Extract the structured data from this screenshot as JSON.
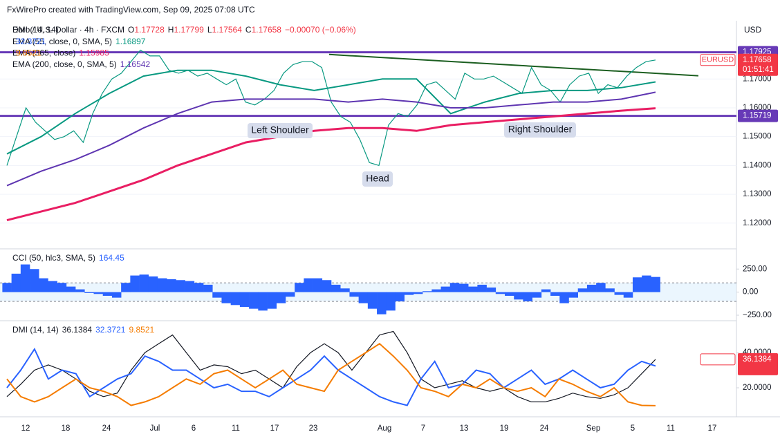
{
  "header": {
    "attribution": "FxWirePro created with TradingView.com, Sep 09, 2025 07:08 UTC"
  },
  "chart_data": [
    {
      "type": "line",
      "title": "Euro / U.S. Dollar · 4h · FXCM",
      "ohlc": [
        "O",
        "1.17728",
        "H",
        "1.17799",
        "L",
        "1.17564",
        "C",
        "1.17658",
        "−0.00070 (−0.06%)"
      ],
      "currency": "USD",
      "ylim": [
        1.1118,
        1.1902
      ],
      "yticks": [
        {
          "value": 1.17,
          "label": "1.17000"
        },
        {
          "value": 1.16,
          "label": "1.16000"
        },
        {
          "value": 1.15,
          "label": "1.15000"
        },
        {
          "value": 1.14,
          "label": "1.14000"
        },
        {
          "value": 1.13,
          "label": "1.13000"
        },
        {
          "value": 1.12,
          "label": "1.12000"
        }
      ],
      "grid": true,
      "levels": [
        {
          "value": 1.17925,
          "label": "1.17925"
        },
        {
          "value": 1.15719,
          "label": "1.15719"
        }
      ],
      "level_color": "#673ab7",
      "trendline": [
        1.1785,
        1.1711
      ],
      "annotations": [
        "Left Shoulder",
        "Head",
        "Right Shoulder"
      ],
      "countdown": "01:51:41",
      "series": [
        {
          "name": "EURUSD",
          "color": "#089981",
          "value_label": "1.17658",
          "values": [
            1.14,
            1.15,
            1.16,
            1.155,
            1.152,
            1.149,
            1.15,
            1.152,
            1.148,
            1.158,
            1.165,
            1.17,
            1.172,
            1.176,
            1.18,
            1.178,
            1.178,
            1.173,
            1.172,
            1.173,
            1.171,
            1.172,
            1.17,
            1.168,
            1.17,
            1.162,
            1.161,
            1.163,
            1.166,
            1.172,
            1.175,
            1.176,
            1.176,
            1.174,
            1.162,
            1.157,
            1.155,
            1.149,
            1.141,
            1.14,
            1.154,
            1.158,
            1.157,
            1.161,
            1.168,
            1.169,
            1.166,
            1.163,
            1.172,
            1.17,
            1.17,
            1.171,
            1.169,
            1.167,
            1.165,
            1.174,
            1.168,
            1.166,
            1.162,
            1.168,
            1.171,
            1.172,
            1.165,
            1.168,
            1.167,
            1.171,
            1.174,
            1.176,
            1.17658
          ]
        },
        {
          "name": "EMA (55, close, 0, SMA, 5)",
          "color": "#089981",
          "value_label": "1.16897",
          "values": [
            1.144,
            1.15,
            1.158,
            1.165,
            1.171,
            1.173,
            1.173,
            1.171,
            1.168,
            1.166,
            1.168,
            1.17,
            1.17,
            1.158,
            1.162,
            1.165,
            1.166,
            1.166,
            1.167,
            1.16897
          ]
        },
        {
          "name": "EMA (365, close)",
          "color": "#e91e63",
          "value_label": "1.15985",
          "values": [
            1.121,
            1.124,
            1.127,
            1.131,
            1.135,
            1.14,
            1.144,
            1.148,
            1.15,
            1.152,
            1.153,
            1.153,
            1.152,
            1.154,
            1.155,
            1.156,
            1.157,
            1.158,
            1.159,
            1.15985
          ]
        },
        {
          "name": "EMA (200, close, 0, SMA, 5)",
          "color": "#5e35b1",
          "value_label": "1.16542",
          "values": [
            1.133,
            1.138,
            1.142,
            1.147,
            1.153,
            1.158,
            1.162,
            1.163,
            1.163,
            1.163,
            1.162,
            1.163,
            1.162,
            1.16,
            1.16,
            1.161,
            1.162,
            1.162,
            1.163,
            1.16542
          ]
        }
      ]
    },
    {
      "type": "bar",
      "title": "CCI (50, hlc3, SMA, 5)",
      "value_label": "164.45",
      "color": "#2962ff",
      "ylim": [
        -295,
        454
      ],
      "yticks": [
        {
          "value": 250,
          "label": "250.00"
        },
        {
          "value": 0,
          "label": "0.00"
        },
        {
          "value": -250,
          "label": "−250.00"
        }
      ],
      "bands": [
        100,
        -100
      ],
      "values": [
        100,
        200,
        300,
        250,
        150,
        120,
        100,
        60,
        30,
        -10,
        -20,
        -40,
        -60,
        100,
        180,
        190,
        170,
        150,
        140,
        130,
        120,
        100,
        80,
        -60,
        -120,
        -140,
        -160,
        -180,
        -200,
        -180,
        -120,
        -50,
        100,
        150,
        150,
        130,
        80,
        40,
        -50,
        -120,
        -180,
        -240,
        -200,
        -100,
        -30,
        -20,
        10,
        30,
        60,
        100,
        90,
        60,
        80,
        50,
        -20,
        -40,
        -80,
        -100,
        -60,
        30,
        -40,
        -120,
        -60,
        40,
        80,
        100,
        40,
        -30,
        -60,
        160,
        180,
        164.45
      ]
    },
    {
      "type": "line",
      "title": "DMI (14, 14)",
      "ylim": [
        4.7,
        57.3
      ],
      "yticks": [
        {
          "value": 40,
          "label": "40.0000"
        },
        {
          "value": 20,
          "label": "20.0000"
        }
      ],
      "x_labels": [
        "12",
        "18",
        "24",
        "Jul",
        "6",
        "11",
        "17",
        "23",
        "Aug",
        "7",
        "13",
        "19",
        "24",
        "Sep",
        "5",
        "11",
        "17"
      ],
      "series": [
        {
          "color": "#131722",
          "value_label": "36.1384",
          "values": [
            15,
            22,
            30,
            33,
            30,
            25,
            18,
            15,
            17,
            30,
            40,
            45,
            50,
            40,
            30,
            33,
            32,
            28,
            30,
            25,
            20,
            32,
            40,
            45,
            40,
            30,
            40,
            50,
            52,
            40,
            25,
            20,
            22,
            24,
            20,
            18,
            20,
            15,
            12,
            12,
            14,
            17,
            15,
            14,
            16,
            20,
            28,
            36.1384
          ]
        },
        {
          "color": "#2962ff",
          "value_label": "32.3721",
          "values": [
            20,
            30,
            42,
            25,
            30,
            28,
            15,
            20,
            25,
            28,
            38,
            35,
            30,
            30,
            25,
            20,
            22,
            18,
            18,
            15,
            20,
            25,
            30,
            38,
            30,
            25,
            20,
            15,
            12,
            10,
            25,
            35,
            20,
            22,
            30,
            28,
            20,
            25,
            30,
            22,
            25,
            30,
            25,
            20,
            22,
            30,
            35,
            32.3721
          ]
        },
        {
          "color": "#f57c00",
          "value_label": "9.8521",
          "values": [
            25,
            15,
            12,
            15,
            20,
            25,
            20,
            18,
            15,
            10,
            12,
            15,
            20,
            25,
            22,
            28,
            30,
            25,
            20,
            25,
            30,
            22,
            20,
            18,
            30,
            35,
            40,
            45,
            38,
            30,
            20,
            18,
            15,
            22,
            20,
            25,
            20,
            18,
            20,
            15,
            25,
            22,
            18,
            15,
            20,
            12,
            10,
            9.8521
          ]
        }
      ]
    }
  ]
}
